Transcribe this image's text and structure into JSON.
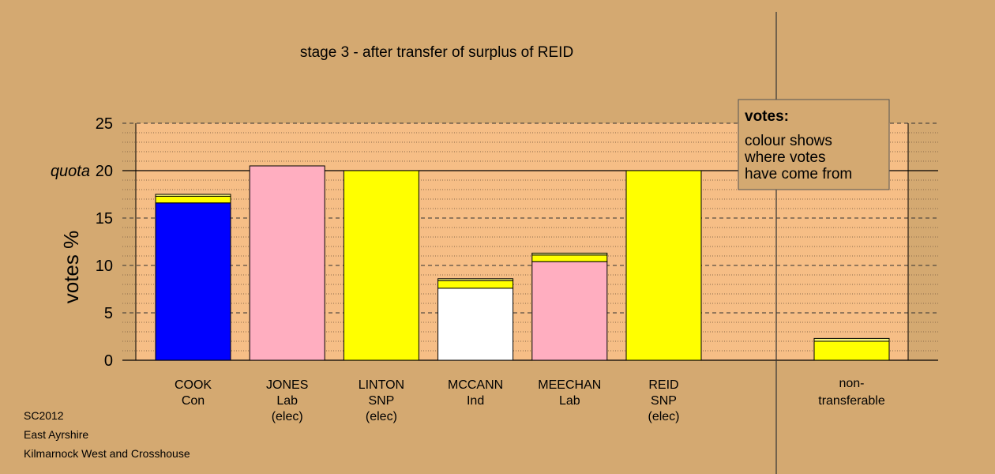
{
  "chart_data": {
    "type": "bar",
    "stacked": true,
    "title": "stage 3 - after transfer of surplus of REID",
    "ylabel": "votes %",
    "ylim": [
      0,
      25
    ],
    "yticks": [
      0,
      5,
      10,
      15,
      20,
      25
    ],
    "quota": {
      "label": "quota",
      "value": 20
    },
    "colors": {
      "background": "#d4a971",
      "plot": "#f6be86"
    },
    "categories": [
      {
        "name": "COOK",
        "party": "Con",
        "note": ""
      },
      {
        "name": "JONES",
        "party": "Lab",
        "note": "(elec)"
      },
      {
        "name": "LINTON",
        "party": "SNP",
        "note": "(elec)"
      },
      {
        "name": "MCCANN",
        "party": "Ind",
        "note": ""
      },
      {
        "name": "MEECHAN",
        "party": "Lab",
        "note": ""
      },
      {
        "name": "REID",
        "party": "SNP",
        "note": "(elec)"
      }
    ],
    "bars": [
      {
        "segments": [
          {
            "value": 16.6,
            "color": "#0000ff"
          },
          {
            "value": 0.7,
            "color": "#ffff00"
          },
          {
            "value": 0.2,
            "color": "#f5f57a"
          }
        ]
      },
      {
        "segments": [
          {
            "value": 20.5,
            "color": "#ffaec0"
          }
        ]
      },
      {
        "segments": [
          {
            "value": 20.0,
            "color": "#ffff00"
          }
        ]
      },
      {
        "segments": [
          {
            "value": 7.6,
            "color": "#ffffff"
          },
          {
            "value": 0.8,
            "color": "#ffff00"
          },
          {
            "value": 0.2,
            "color": "#f5f57a"
          }
        ]
      },
      {
        "segments": [
          {
            "value": 10.4,
            "color": "#ffaec0"
          },
          {
            "value": 0.7,
            "color": "#ffff00"
          },
          {
            "value": 0.2,
            "color": "#f5f57a"
          }
        ]
      },
      {
        "segments": [
          {
            "value": 20.0,
            "color": "#ffff00"
          }
        ]
      }
    ],
    "nontransferable": {
      "label_line1": "non-",
      "label_line2": "transferable",
      "segments": [
        {
          "value": 2.0,
          "color": "#ffff00"
        },
        {
          "value": 0.3,
          "color": "#f5f57a"
        }
      ]
    },
    "legend": {
      "title": "votes:",
      "lines": [
        "colour shows",
        "where votes",
        "have come from"
      ]
    }
  },
  "footer": {
    "line1": "SC2012",
    "line2": "East Ayrshire",
    "line3": "Kilmarnock West and Crosshouse"
  }
}
